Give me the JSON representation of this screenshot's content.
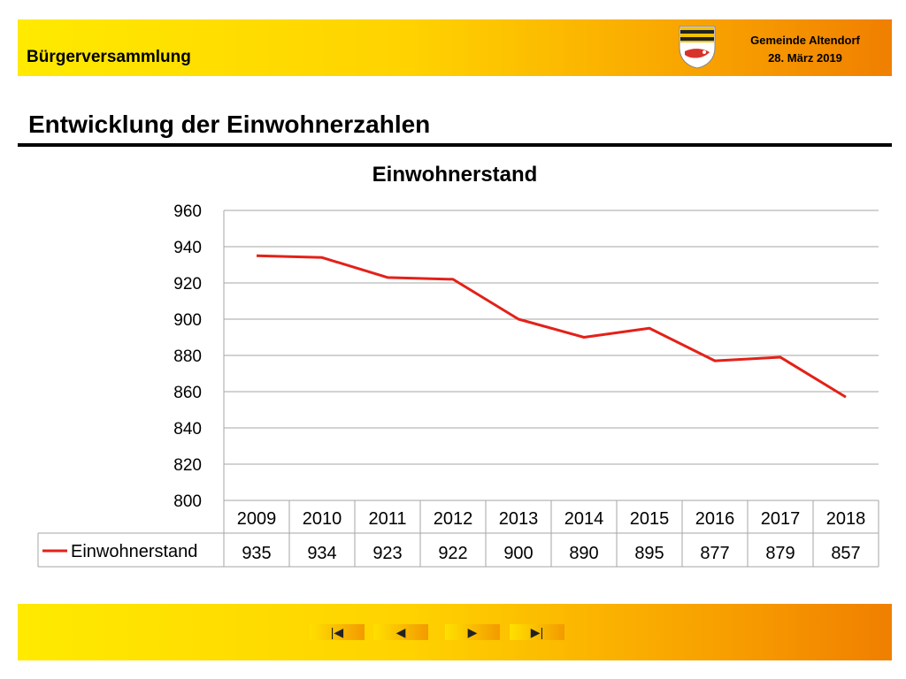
{
  "header": {
    "title": "Bürgerversammlung",
    "org_name": "Gemeinde Altendorf",
    "date": "28. März 2019"
  },
  "page": {
    "title": "Entwicklung der Einwohnerzahlen"
  },
  "nav": {
    "first_icon": "|◀",
    "prev_icon": "◀",
    "next_icon": "▶",
    "last_icon": "▶|"
  },
  "colors": {
    "series": "#e32119",
    "banner_start": "#ffea00",
    "banner_end": "#f07f00"
  },
  "chart_data": {
    "type": "line",
    "title": "Einwohnerstand",
    "categories": [
      "2009",
      "2010",
      "2011",
      "2012",
      "2013",
      "2014",
      "2015",
      "2016",
      "2017",
      "2018"
    ],
    "series": [
      {
        "name": "Einwohnerstand",
        "values": [
          935,
          934,
          923,
          922,
          900,
          890,
          895,
          877,
          879,
          857
        ]
      }
    ],
    "ylim": [
      800,
      960
    ],
    "yticks": [
      800,
      820,
      840,
      860,
      880,
      900,
      920,
      940,
      960
    ],
    "grid": true,
    "legend": "data-table-left"
  }
}
